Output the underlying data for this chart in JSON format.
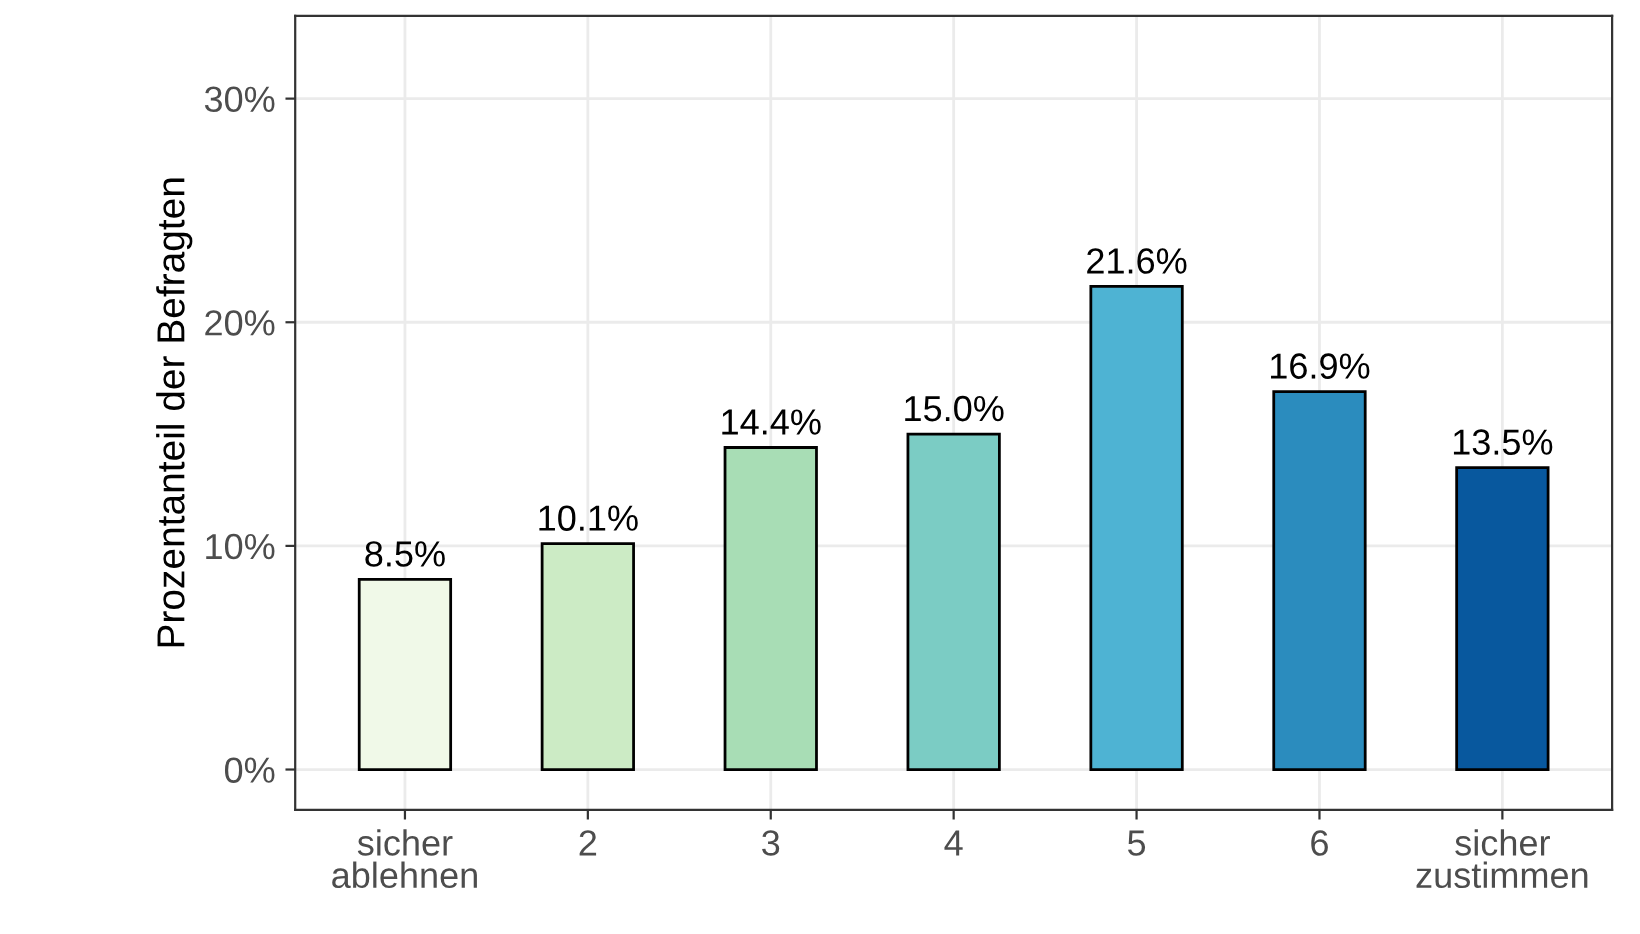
{
  "chart_data": {
    "type": "bar",
    "ylabel": "Prozentanteil der Befragten",
    "categories": [
      "sicher\nablehnen",
      "2",
      "3",
      "4",
      "5",
      "6",
      "sicher\nzustimmen"
    ],
    "values": [
      8.5,
      10.1,
      14.4,
      15.0,
      21.6,
      16.9,
      13.5
    ],
    "value_labels": [
      "8.5%",
      "10.1%",
      "14.4%",
      "15.0%",
      "21.6%",
      "16.9%",
      "13.5%"
    ],
    "colors": [
      "#f0f9e8",
      "#ccebc5",
      "#a8ddb5",
      "#7bccc4",
      "#4eb3d3",
      "#2b8cbe",
      "#08589e"
    ],
    "ylim": [
      -1.8,
      33.7
    ],
    "yticks": [
      {
        "value": 0,
        "label": "0%"
      },
      {
        "value": 10,
        "label": "10%"
      },
      {
        "value": 20,
        "label": "20%"
      },
      {
        "value": 30,
        "label": "30%"
      }
    ],
    "grid": true
  }
}
